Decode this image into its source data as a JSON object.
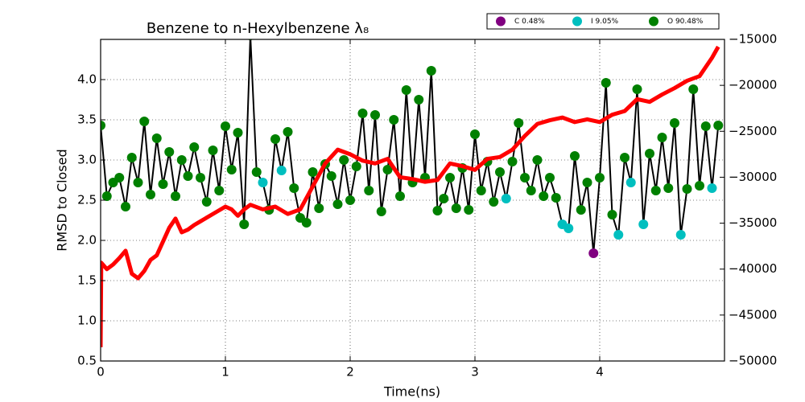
{
  "chart_data": {
    "type": "line",
    "title": "Benzene to n-Hexylbenzene λ₈",
    "x_label": "Time(ns)",
    "y_label": "RMSD to Closed",
    "xlim": [
      0,
      5
    ],
    "xticks": [
      0,
      1,
      2,
      3,
      4
    ],
    "ylim": [
      0.5,
      4.5
    ],
    "yticks": [
      0.5,
      {
        "value": 1,
        "label": "1.0"
      },
      1.5,
      {
        "value": 2,
        "label": "2.0"
      },
      2.5,
      {
        "value": 3,
        "label": "3.0"
      },
      3.5,
      {
        "value": 4,
        "label": "4.0"
      }
    ],
    "y2lim": [
      -50000,
      -15000
    ],
    "y2ticks": [
      {
        "value": -50000,
        "label": "−50000"
      },
      {
        "value": -45000,
        "label": "−45000"
      },
      {
        "value": -40000,
        "label": "−40000"
      },
      {
        "value": -35000,
        "label": "−35000"
      },
      {
        "value": -30000,
        "label": "−30000"
      },
      {
        "value": -25000,
        "label": "−25000"
      },
      {
        "value": -20000,
        "label": "−20000"
      },
      {
        "value": -15000,
        "label": "−15000"
      }
    ],
    "grid": true,
    "legend": "upper right",
    "series": [
      {
        "mode": "line",
        "color": "#000000",
        "x": [
          0,
          0.05,
          0.1,
          0.15,
          0.2,
          0.25,
          0.3,
          0.35,
          0.4,
          0.45,
          0.5,
          0.55,
          0.6,
          0.65,
          0.7,
          0.75,
          0.8,
          0.85,
          0.9,
          0.95,
          1.0,
          1.05,
          1.1,
          1.15,
          1.2,
          1.25,
          1.3,
          1.35,
          1.4,
          1.45,
          1.5,
          1.55,
          1.6,
          1.65,
          1.7,
          1.75,
          1.8,
          1.85,
          1.9,
          1.95,
          2.0,
          2.05,
          2.1,
          2.15,
          2.2,
          2.25,
          2.3,
          2.35,
          2.4,
          2.45,
          2.5,
          2.55,
          2.6,
          2.65,
          2.7,
          2.75,
          2.8,
          2.85,
          2.9,
          2.95,
          3.0,
          3.05,
          3.1,
          3.15,
          3.2,
          3.25,
          3.3,
          3.35,
          3.4,
          3.45,
          3.5,
          3.55,
          3.6,
          3.65,
          3.7,
          3.75,
          3.8,
          3.85,
          3.9,
          3.95,
          4.0,
          4.05,
          4.1,
          4.15,
          4.2,
          4.25,
          4.3,
          4.35,
          4.4,
          4.45,
          4.5,
          4.55,
          4.6,
          4.65,
          4.7,
          4.75,
          4.8,
          4.85,
          4.9,
          4.95
        ],
        "values": [
          3.43,
          2.55,
          2.72,
          2.78,
          2.42,
          3.03,
          2.72,
          3.48,
          2.57,
          3.27,
          2.7,
          3.1,
          2.55,
          3.0,
          2.8,
          3.16,
          2.78,
          2.48,
          3.12,
          2.62,
          3.42,
          2.88,
          3.34,
          2.2,
          4.55,
          2.85,
          2.72,
          2.38,
          3.26,
          2.87,
          3.35,
          2.65,
          2.28,
          2.22,
          2.85,
          2.4,
          2.95,
          2.8,
          2.45,
          3.0,
          2.5,
          2.92,
          3.58,
          2.62,
          3.56,
          2.36,
          2.88,
          3.5,
          2.55,
          3.87,
          2.72,
          3.75,
          2.78,
          4.11,
          2.37,
          2.52,
          2.78,
          2.4,
          2.9,
          2.38,
          3.32,
          2.62,
          2.98,
          2.48,
          2.85,
          2.52,
          2.98,
          3.46,
          2.78,
          2.62,
          3.0,
          2.55,
          2.78,
          2.53,
          2.2,
          2.15,
          3.05,
          2.38,
          2.72,
          1.84,
          2.78,
          3.96,
          2.32,
          2.07,
          3.03,
          2.72,
          3.88,
          2.2,
          3.08,
          2.62,
          3.28,
          2.65,
          3.46,
          2.07,
          2.64,
          3.88,
          2.68,
          3.42,
          2.65,
          3.43
        ]
      },
      {
        "mode": "markers",
        "name": "C 0.48%",
        "color": "#800080",
        "x": [
          3.95
        ],
        "values": [
          1.84
        ]
      },
      {
        "mode": "markers",
        "name": "I 9.05%",
        "color": "#00bfbf",
        "x": [
          1.3,
          1.45,
          3.25,
          3.7,
          3.75,
          4.15,
          4.25,
          4.35,
          4.65,
          4.9
        ],
        "values": [
          2.72,
          2.87,
          2.52,
          2.2,
          2.15,
          2.07,
          2.72,
          2.2,
          2.07,
          2.65
        ]
      },
      {
        "mode": "markers",
        "name": "O 90.48%",
        "color": "#008000",
        "x": [
          0,
          0.05,
          0.1,
          0.15,
          0.2,
          0.25,
          0.3,
          0.35,
          0.4,
          0.45,
          0.5,
          0.55,
          0.6,
          0.65,
          0.7,
          0.75,
          0.8,
          0.85,
          0.9,
          0.95,
          1.0,
          1.05,
          1.1,
          1.15,
          1.2,
          1.25,
          1.35,
          1.4,
          1.5,
          1.55,
          1.6,
          1.65,
          1.7,
          1.75,
          1.8,
          1.85,
          1.9,
          1.95,
          2.0,
          2.05,
          2.1,
          2.15,
          2.2,
          2.25,
          2.3,
          2.35,
          2.4,
          2.45,
          2.5,
          2.55,
          2.6,
          2.65,
          2.7,
          2.75,
          2.8,
          2.85,
          2.9,
          2.95,
          3.0,
          3.05,
          3.1,
          3.15,
          3.2,
          3.3,
          3.35,
          3.4,
          3.45,
          3.5,
          3.55,
          3.6,
          3.65,
          3.8,
          3.85,
          3.9,
          4.0,
          4.05,
          4.1,
          4.2,
          4.3,
          4.4,
          4.45,
          4.5,
          4.55,
          4.6,
          4.7,
          4.75,
          4.8,
          4.85,
          4.95
        ],
        "values": [
          3.43,
          2.55,
          2.72,
          2.78,
          2.42,
          3.03,
          2.72,
          3.48,
          2.57,
          3.27,
          2.7,
          3.1,
          2.55,
          3.0,
          2.8,
          3.16,
          2.78,
          2.48,
          3.12,
          2.62,
          3.42,
          2.88,
          3.34,
          2.2,
          4.55,
          2.85,
          2.38,
          3.26,
          3.35,
          2.65,
          2.28,
          2.22,
          2.85,
          2.4,
          2.95,
          2.8,
          2.45,
          3.0,
          2.5,
          2.92,
          3.58,
          2.62,
          3.56,
          2.36,
          2.88,
          3.5,
          2.55,
          3.87,
          2.72,
          3.75,
          2.78,
          4.11,
          2.37,
          2.52,
          2.78,
          2.4,
          2.9,
          2.38,
          3.32,
          2.62,
          2.98,
          2.48,
          2.85,
          2.98,
          3.46,
          2.78,
          2.62,
          3.0,
          2.55,
          2.78,
          2.53,
          3.05,
          2.38,
          2.72,
          2.78,
          3.96,
          2.32,
          3.03,
          3.88,
          3.08,
          2.62,
          3.28,
          2.65,
          3.46,
          2.64,
          3.88,
          2.68,
          3.42,
          3.43
        ]
      },
      {
        "mode": "line",
        "axis": "y2",
        "color": "#ff0000",
        "x": [
          0,
          0.005,
          0.05,
          0.1,
          0.15,
          0.2,
          0.25,
          0.3,
          0.35,
          0.4,
          0.45,
          0.5,
          0.55,
          0.6,
          0.65,
          0.7,
          0.75,
          0.8,
          0.9,
          1.0,
          1.05,
          1.1,
          1.15,
          1.2,
          1.3,
          1.4,
          1.5,
          1.6,
          1.7,
          1.8,
          1.9,
          2.0,
          2.1,
          2.2,
          2.3,
          2.4,
          2.5,
          2.6,
          2.7,
          2.8,
          2.9,
          3.0,
          3.1,
          3.2,
          3.3,
          3.4,
          3.5,
          3.6,
          3.7,
          3.8,
          3.9,
          4.0,
          4.1,
          4.2,
          4.3,
          4.4,
          4.5,
          4.6,
          4.7,
          4.8,
          4.9,
          4.95
        ],
        "values": [
          -48500,
          -39300,
          -40000,
          -39500,
          -38800,
          -38000,
          -40500,
          -41000,
          -40200,
          -39000,
          -38500,
          -37000,
          -35500,
          -34500,
          -36000,
          -35700,
          -35200,
          -34800,
          -34000,
          -33200,
          -33500,
          -34200,
          -33500,
          -33000,
          -33500,
          -33200,
          -34000,
          -33500,
          -31000,
          -28500,
          -27000,
          -27500,
          -28200,
          -28500,
          -28000,
          -30000,
          -30200,
          -30500,
          -30300,
          -28500,
          -28800,
          -29200,
          -28000,
          -27800,
          -27000,
          -25500,
          -24200,
          -23800,
          -23500,
          -24000,
          -23700,
          -24000,
          -23200,
          -22800,
          -21500,
          -21800,
          -21000,
          -20300,
          -19500,
          -19000,
          -17000,
          -15800
        ]
      }
    ]
  }
}
